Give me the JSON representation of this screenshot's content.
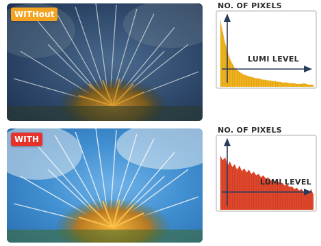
{
  "panels": [
    {
      "id": "without",
      "badge_label": "WITHout",
      "badge_color": "#f4a423",
      "histogram": {
        "y_label": "NO. OF PIXELS",
        "x_label": "LUMI LEVEL",
        "fill_color": "#f2b21c",
        "levels": [
          0.95,
          0.78,
          0.62,
          0.5,
          0.4,
          0.33,
          0.27,
          0.24,
          0.21,
          0.19,
          0.17,
          0.16,
          0.15,
          0.14,
          0.13,
          0.12,
          0.12,
          0.11,
          0.1,
          0.1,
          0.09,
          0.09,
          0.08,
          0.08,
          0.07,
          0.07,
          0.06,
          0.06,
          0.06,
          0.05,
          0.05,
          0.05,
          0.04,
          0.04,
          0.04,
          0.05,
          0.04,
          0.03,
          0.03,
          0.03
        ]
      }
    },
    {
      "id": "with",
      "badge_label": "WITH",
      "badge_color": "#e5322a",
      "histogram": {
        "y_label": "NO. OF PIXELS",
        "x_label": "LUMI LEVEL",
        "fill_color": "#e0462b",
        "levels": [
          0.78,
          0.72,
          0.76,
          0.64,
          0.7,
          0.62,
          0.66,
          0.58,
          0.64,
          0.56,
          0.6,
          0.54,
          0.58,
          0.52,
          0.55,
          0.5,
          0.52,
          0.47,
          0.5,
          0.45,
          0.47,
          0.42,
          0.44,
          0.4,
          0.42,
          0.38,
          0.39,
          0.35,
          0.37,
          0.33,
          0.34,
          0.3,
          0.32,
          0.28,
          0.3,
          0.26,
          0.28,
          0.24,
          0.3,
          0.22
        ]
      }
    }
  ]
}
